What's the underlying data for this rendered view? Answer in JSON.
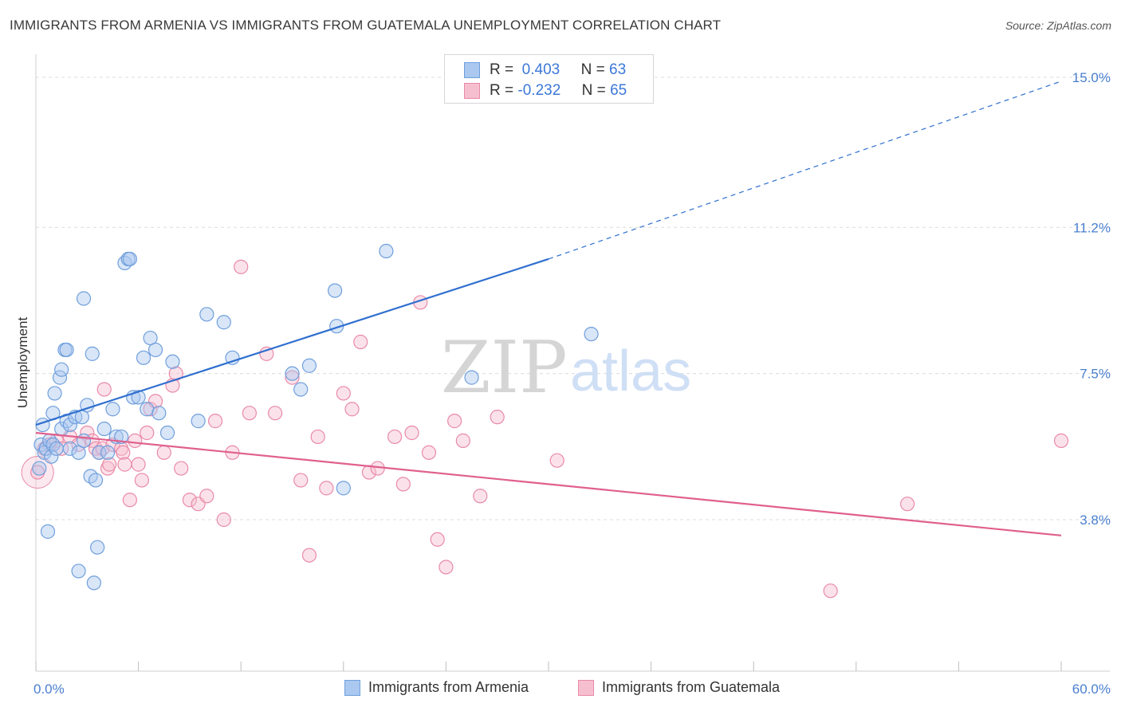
{
  "header": {
    "title": "IMMIGRANTS FROM ARMENIA VS IMMIGRANTS FROM GUATEMALA UNEMPLOYMENT CORRELATION CHART",
    "source": "Source: ZipAtlas.com"
  },
  "watermark": {
    "zip": "ZIP",
    "atlas": "atlas"
  },
  "legend_top": {
    "rows": [
      {
        "r_label": "R =",
        "r_value": "0.403",
        "n_label": "N =",
        "n_value": "63"
      },
      {
        "r_label": "R =",
        "r_value": "-0.232",
        "n_label": "N =",
        "n_value": "65"
      }
    ]
  },
  "legend_bottom": {
    "armenia": "Immigrants from Armenia",
    "guatemala": "Immigrants from Guatemala"
  },
  "colors": {
    "armenia_fill": "#aac8f0",
    "armenia_stroke": "#6f9fdc",
    "armenia_line": "#2f6fcf",
    "guatemala_fill": "#f6bfd0",
    "guatemala_stroke": "#e98aa8",
    "guatemala_line": "#e0608e",
    "tick_text": "#4a7fd0"
  },
  "chart_data": {
    "type": "scatter",
    "ylabel": "Unemployment",
    "xlabel": "",
    "xlim": [
      0,
      60
    ],
    "ylim": [
      0,
      15.5
    ],
    "x_tick_labels": [
      {
        "x": 0,
        "label": "0.0%"
      },
      {
        "x": 60,
        "label": "60.0%"
      }
    ],
    "y_tick_labels": [
      {
        "y": 3.8,
        "label": "3.8%"
      },
      {
        "y": 7.5,
        "label": "7.5%"
      },
      {
        "y": 11.2,
        "label": "11.2%"
      },
      {
        "y": 15.0,
        "label": "15.0%"
      }
    ],
    "x_minor_ticks": [
      6,
      12,
      18,
      24,
      30,
      36,
      42,
      48,
      54
    ],
    "grid": true,
    "series": [
      {
        "name": "Immigrants from Armenia",
        "color": "#6f9fdc",
        "trend": {
          "x_start": 0,
          "y_start": 6.2,
          "x_solid_end": 30,
          "y_solid_end": 10.4,
          "x_dash_end": 60,
          "y_dash_end": 14.9
        },
        "points": [
          [
            0.2,
            5.1
          ],
          [
            0.3,
            5.7
          ],
          [
            0.4,
            6.2
          ],
          [
            0.5,
            5.5
          ],
          [
            0.6,
            5.6
          ],
          [
            0.7,
            3.5
          ],
          [
            0.8,
            5.8
          ],
          [
            0.9,
            5.4
          ],
          [
            1.0,
            6.5
          ],
          [
            1.0,
            5.7
          ],
          [
            1.1,
            7.0
          ],
          [
            1.2,
            5.6
          ],
          [
            1.4,
            7.4
          ],
          [
            1.5,
            6.1
          ],
          [
            1.5,
            7.6
          ],
          [
            1.7,
            8.1
          ],
          [
            1.8,
            6.3
          ],
          [
            1.8,
            8.1
          ],
          [
            2.0,
            6.2
          ],
          [
            2.0,
            5.6
          ],
          [
            2.3,
            6.4
          ],
          [
            2.5,
            5.5
          ],
          [
            2.5,
            2.5
          ],
          [
            2.7,
            6.4
          ],
          [
            2.8,
            9.4
          ],
          [
            2.8,
            5.8
          ],
          [
            3.0,
            6.7
          ],
          [
            3.2,
            4.9
          ],
          [
            3.3,
            8.0
          ],
          [
            3.4,
            2.2
          ],
          [
            3.5,
            4.8
          ],
          [
            3.6,
            3.1
          ],
          [
            3.7,
            5.5
          ],
          [
            4.0,
            6.1
          ],
          [
            4.2,
            5.5
          ],
          [
            4.5,
            6.6
          ],
          [
            4.7,
            5.9
          ],
          [
            5.0,
            5.9
          ],
          [
            5.2,
            10.3
          ],
          [
            5.4,
            10.4
          ],
          [
            5.5,
            10.4
          ],
          [
            5.7,
            6.9
          ],
          [
            6.0,
            6.9
          ],
          [
            6.3,
            7.9
          ],
          [
            6.5,
            6.6
          ],
          [
            6.7,
            8.4
          ],
          [
            7.0,
            8.1
          ],
          [
            7.2,
            6.5
          ],
          [
            7.7,
            6.0
          ],
          [
            8.0,
            7.8
          ],
          [
            9.5,
            6.3
          ],
          [
            10.0,
            9.0
          ],
          [
            11.0,
            8.8
          ],
          [
            11.5,
            7.9
          ],
          [
            15.0,
            7.5
          ],
          [
            15.5,
            7.1
          ],
          [
            16.0,
            7.7
          ],
          [
            17.5,
            9.6
          ],
          [
            17.6,
            8.7
          ],
          [
            18.0,
            4.6
          ],
          [
            20.5,
            10.6
          ],
          [
            25.5,
            7.4
          ],
          [
            32.5,
            8.5
          ]
        ]
      },
      {
        "name": "Immigrants from Guatemala",
        "color": "#e98aa8",
        "trend": {
          "x_start": 0,
          "y_start": 6.0,
          "x_end": 60,
          "y_end": 3.4
        },
        "points": [
          [
            0.1,
            5.0
          ],
          [
            0.5,
            5.6
          ],
          [
            0.8,
            5.7
          ],
          [
            1.2,
            5.8
          ],
          [
            1.5,
            5.6
          ],
          [
            2.0,
            5.9
          ],
          [
            2.5,
            5.7
          ],
          [
            3.0,
            6.0
          ],
          [
            3.3,
            5.8
          ],
          [
            3.5,
            5.6
          ],
          [
            3.7,
            5.5
          ],
          [
            3.9,
            5.6
          ],
          [
            4.0,
            7.1
          ],
          [
            4.2,
            5.1
          ],
          [
            4.3,
            5.2
          ],
          [
            4.5,
            5.7
          ],
          [
            5.0,
            5.6
          ],
          [
            5.1,
            5.5
          ],
          [
            5.2,
            5.2
          ],
          [
            5.5,
            4.3
          ],
          [
            5.8,
            5.8
          ],
          [
            6.0,
            5.2
          ],
          [
            6.2,
            4.8
          ],
          [
            6.5,
            6.0
          ],
          [
            6.7,
            6.6
          ],
          [
            7.0,
            6.8
          ],
          [
            7.5,
            5.5
          ],
          [
            8.0,
            7.2
          ],
          [
            8.2,
            7.5
          ],
          [
            8.5,
            5.1
          ],
          [
            9.0,
            4.3
          ],
          [
            9.5,
            4.2
          ],
          [
            10.0,
            4.4
          ],
          [
            10.5,
            6.3
          ],
          [
            11.0,
            3.8
          ],
          [
            11.5,
            5.5
          ],
          [
            12.0,
            10.2
          ],
          [
            12.5,
            6.5
          ],
          [
            13.5,
            8.0
          ],
          [
            14.0,
            6.5
          ],
          [
            15.0,
            7.4
          ],
          [
            15.5,
            4.8
          ],
          [
            16.0,
            2.9
          ],
          [
            16.5,
            5.9
          ],
          [
            17.0,
            4.6
          ],
          [
            18.0,
            7.0
          ],
          [
            18.5,
            6.6
          ],
          [
            19.0,
            8.3
          ],
          [
            19.5,
            5.0
          ],
          [
            20.0,
            5.1
          ],
          [
            21.0,
            5.9
          ],
          [
            21.5,
            4.7
          ],
          [
            22.0,
            6.0
          ],
          [
            22.5,
            9.3
          ],
          [
            23.0,
            5.5
          ],
          [
            23.5,
            3.3
          ],
          [
            24.0,
            2.6
          ],
          [
            24.5,
            6.3
          ],
          [
            25.0,
            5.8
          ],
          [
            26.0,
            4.4
          ],
          [
            27.0,
            6.4
          ],
          [
            30.5,
            5.3
          ],
          [
            46.5,
            2.0
          ],
          [
            51.0,
            4.2
          ],
          [
            60.0,
            5.8
          ]
        ]
      }
    ]
  }
}
